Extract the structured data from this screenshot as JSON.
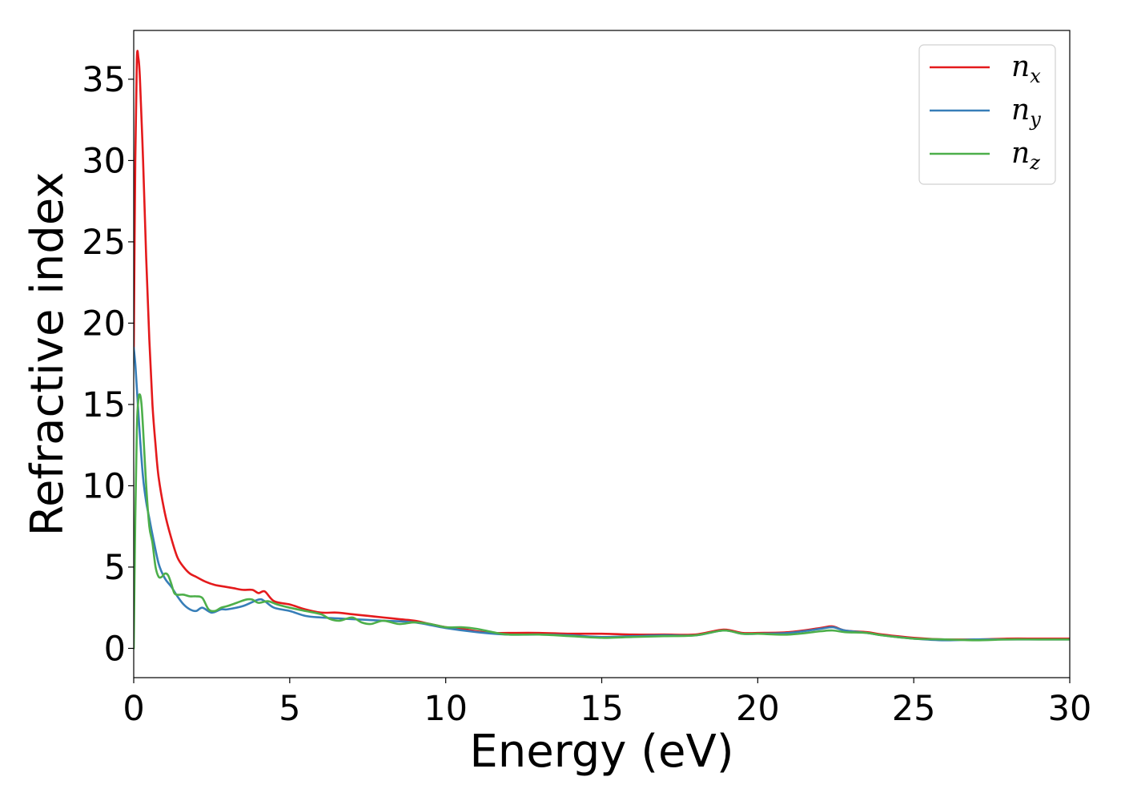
{
  "chart_data": {
    "type": "line",
    "title": "",
    "xlabel": "Energy (eV)",
    "ylabel": "Refractive index",
    "xlim": [
      0,
      30
    ],
    "ylim": [
      -1.8,
      38
    ],
    "xticks": [
      0,
      5,
      10,
      15,
      20,
      25,
      30
    ],
    "yticks": [
      0,
      5,
      10,
      15,
      20,
      25,
      30,
      35
    ],
    "grid": false,
    "legend_position": "top-right",
    "series": [
      {
        "name": "n",
        "subscript": "x",
        "color": "#e41a1c",
        "x": [
          0,
          0.05,
          0.1,
          0.15,
          0.2,
          0.3,
          0.4,
          0.5,
          0.6,
          0.7,
          0.8,
          1.0,
          1.2,
          1.4,
          1.6,
          1.8,
          2.0,
          2.3,
          2.6,
          2.9,
          3.2,
          3.5,
          3.8,
          4.0,
          4.2,
          4.5,
          5.0,
          5.5,
          6.0,
          6.5,
          7.0,
          7.5,
          8.0,
          8.5,
          9.0,
          9.5,
          10.0,
          10.5,
          11.0,
          11.5,
          12.0,
          13.0,
          14.0,
          15.0,
          16.0,
          17.0,
          18.0,
          18.9,
          19.5,
          20.0,
          21.0,
          22.0,
          22.4,
          22.8,
          23.5,
          24.0,
          25.0,
          26.0,
          27.0,
          28.0,
          29.0,
          30.0
        ],
        "y": [
          18,
          30,
          36.2,
          36.3,
          35,
          30,
          24,
          19,
          15,
          12.5,
          10.5,
          8.3,
          6.8,
          5.6,
          5.0,
          4.6,
          4.4,
          4.1,
          3.9,
          3.8,
          3.7,
          3.6,
          3.6,
          3.4,
          3.5,
          2.9,
          2.7,
          2.4,
          2.2,
          2.2,
          2.1,
          2.0,
          1.9,
          1.8,
          1.7,
          1.5,
          1.3,
          1.2,
          1.05,
          0.95,
          0.95,
          0.95,
          0.9,
          0.9,
          0.85,
          0.85,
          0.85,
          1.15,
          0.95,
          0.95,
          1.0,
          1.25,
          1.35,
          1.1,
          1.0,
          0.85,
          0.65,
          0.55,
          0.55,
          0.6,
          0.6,
          0.6
        ]
      },
      {
        "name": "n",
        "subscript": "y",
        "color": "#377eb8",
        "x": [
          0,
          0.05,
          0.1,
          0.2,
          0.3,
          0.4,
          0.5,
          0.6,
          0.8,
          1.0,
          1.2,
          1.4,
          1.6,
          1.8,
          2.0,
          2.2,
          2.5,
          2.8,
          3.0,
          3.5,
          4.0,
          4.2,
          4.5,
          5.0,
          5.5,
          6.0,
          7.0,
          8.0,
          9.0,
          10.0,
          11.0,
          12.0,
          13.0,
          14.0,
          15.0,
          16.0,
          17.0,
          18.0,
          18.9,
          19.5,
          20.0,
          21.0,
          22.0,
          22.4,
          22.8,
          23.5,
          24.0,
          25.0,
          26.0,
          27.0,
          28.0,
          29.0,
          30.0
        ],
        "y": [
          18.5,
          17.5,
          16.0,
          13.0,
          10.5,
          9.0,
          8.0,
          7.0,
          5.2,
          4.3,
          3.8,
          3.2,
          2.7,
          2.4,
          2.3,
          2.5,
          2.2,
          2.4,
          2.4,
          2.6,
          3.0,
          2.9,
          2.5,
          2.3,
          2.0,
          1.9,
          1.8,
          1.7,
          1.6,
          1.25,
          1.0,
          0.85,
          0.85,
          0.8,
          0.7,
          0.75,
          0.8,
          0.8,
          1.1,
          0.9,
          0.9,
          0.95,
          1.2,
          1.3,
          1.1,
          0.95,
          0.8,
          0.6,
          0.5,
          0.55,
          0.55,
          0.55,
          0.55
        ]
      },
      {
        "name": "n",
        "subscript": "z",
        "color": "#4daf4a",
        "x": [
          0,
          0.05,
          0.1,
          0.15,
          0.2,
          0.25,
          0.3,
          0.4,
          0.5,
          0.6,
          0.7,
          0.8,
          0.9,
          1.0,
          1.1,
          1.2,
          1.3,
          1.4,
          1.5,
          1.6,
          1.8,
          2.0,
          2.2,
          2.4,
          2.6,
          2.8,
          3.0,
          3.3,
          3.6,
          3.8,
          4.0,
          4.3,
          4.6,
          5.0,
          5.5,
          6.0,
          6.3,
          6.6,
          7.0,
          7.3,
          7.6,
          8.0,
          8.5,
          9.0,
          9.5,
          10.0,
          10.5,
          11.0,
          11.5,
          12.0,
          13.0,
          14.0,
          15.0,
          16.0,
          17.0,
          18.0,
          18.9,
          19.5,
          20.0,
          21.0,
          22.0,
          22.4,
          22.8,
          23.5,
          24.0,
          25.0,
          26.0,
          27.0,
          28.0,
          29.0,
          30.0
        ],
        "y": [
          0,
          8.0,
          13.5,
          15.3,
          15.6,
          15.0,
          13.5,
          10.0,
          7.5,
          6.5,
          5.0,
          4.4,
          4.4,
          4.6,
          4.5,
          4.0,
          3.4,
          3.3,
          3.3,
          3.3,
          3.2,
          3.2,
          3.1,
          2.4,
          2.3,
          2.5,
          2.6,
          2.8,
          3.0,
          3.0,
          2.8,
          2.9,
          2.7,
          2.5,
          2.3,
          2.1,
          1.8,
          1.7,
          1.9,
          1.6,
          1.5,
          1.7,
          1.5,
          1.6,
          1.5,
          1.3,
          1.3,
          1.2,
          1.0,
          0.85,
          0.85,
          0.75,
          0.65,
          0.7,
          0.75,
          0.8,
          1.1,
          0.9,
          0.9,
          0.85,
          1.05,
          1.1,
          1.0,
          0.95,
          0.8,
          0.6,
          0.55,
          0.5,
          0.55,
          0.55,
          0.55
        ]
      }
    ]
  }
}
